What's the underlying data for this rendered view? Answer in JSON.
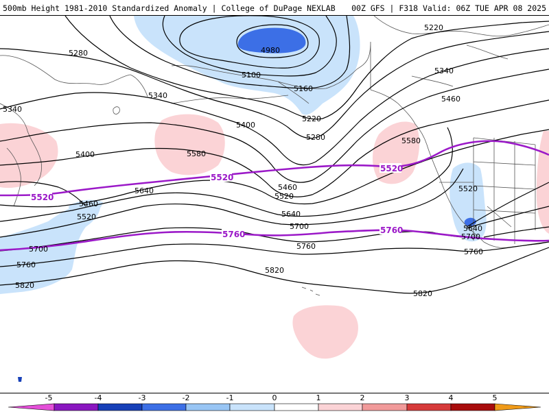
{
  "header": {
    "left_title": "500mb Height 1981-2010 Standardized Anomaly | College of DuPage NEXLAB",
    "right_title": "00Z GFS | F318 Valid: 06Z TUE APR 08 2025"
  },
  "colors": {
    "contour": "#000000",
    "highlight_contour": "#9b19c8",
    "neg1": "#c9e3fb",
    "neg2": "#98c5f4",
    "neg3": "#3c6fe6",
    "neg4": "#1740b8",
    "neg5": "#8a16c0",
    "pos1": "#fbd3d6",
    "pos2": "#f19a9a",
    "pos3": "#d63a3a",
    "pos4": "#a80c0c",
    "pos5": "#ef9a18",
    "coast": "#555555"
  },
  "contour_labels": {
    "c4980": "4980",
    "c5100": "5100",
    "c5160": "5160",
    "c5220": "5220",
    "c5220b": "5220",
    "c5280": "5280",
    "c5280b": "5280",
    "c5340": "5340",
    "c5340b": "5340",
    "c5340c": "5340",
    "c5400": "5400",
    "c5400b": "5400",
    "c5460": "5460",
    "c5460b": "5460",
    "c5460c": "5460",
    "c5520": "5520",
    "c5520b": "5520",
    "c5520c": "5520",
    "c5580": "5580",
    "c5580b": "5580",
    "c5640": "5640",
    "c5640b": "5640",
    "c5640c": "5640",
    "c5700": "5700",
    "c5700b": "5700",
    "c5700c": "5700",
    "c5760": "5760",
    "c5760b": "5760",
    "c5760c": "5760",
    "c5820": "5820",
    "c5820b": "5820",
    "c5820c": "5820"
  },
  "highlight_labels": {
    "h5520a": "5520",
    "h5520b": "5520",
    "h5520c": "5520",
    "h5760a": "5760",
    "h5760b": "5760"
  },
  "legend": {
    "labels": [
      "-5",
      "-4",
      "-3",
      "-2",
      "-1",
      "0",
      "1",
      "2",
      "3",
      "4",
      "5"
    ]
  }
}
